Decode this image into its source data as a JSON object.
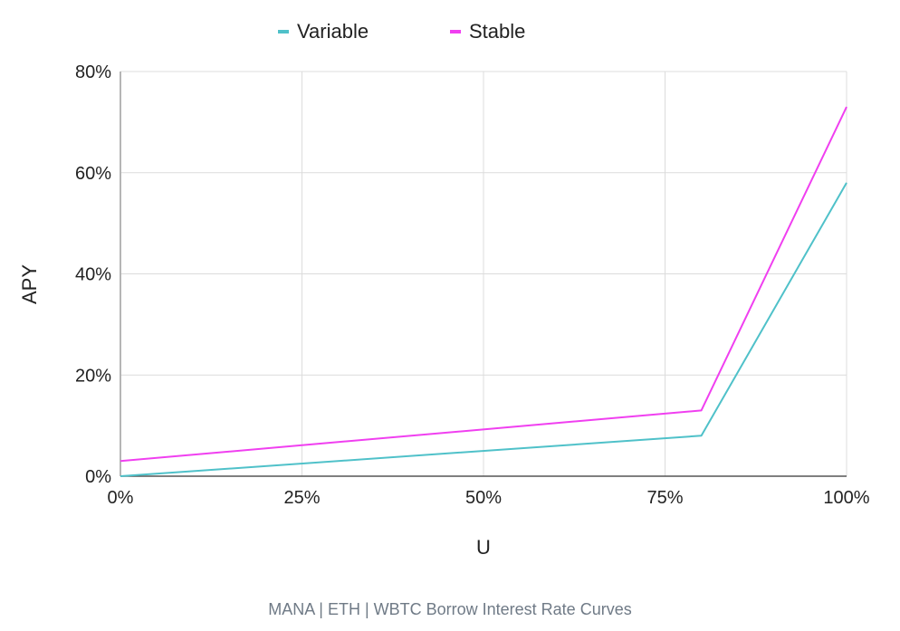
{
  "caption": "MANA | ETH | WBTC Borrow Interest Rate Curves",
  "chart_data": {
    "type": "line",
    "title": "",
    "xlabel": "U",
    "ylabel": "APY",
    "xlim": [
      0,
      100
    ],
    "ylim": [
      0,
      80
    ],
    "x_ticks": [
      0,
      25,
      50,
      75,
      100
    ],
    "x_tick_labels": [
      "0%",
      "25%",
      "50%",
      "75%",
      "100%"
    ],
    "y_ticks": [
      0,
      20,
      40,
      60,
      80
    ],
    "y_tick_labels": [
      "0%",
      "20%",
      "40%",
      "60%",
      "80%"
    ],
    "grid": true,
    "legend_position": "top-center",
    "series": [
      {
        "name": "Variable",
        "color": "#4fc1c9",
        "x": [
          0,
          80,
          100
        ],
        "y": [
          0,
          8,
          58
        ]
      },
      {
        "name": "Stable",
        "color": "#f03ff0",
        "x": [
          0,
          80,
          100
        ],
        "y": [
          3,
          13,
          73
        ]
      }
    ]
  }
}
